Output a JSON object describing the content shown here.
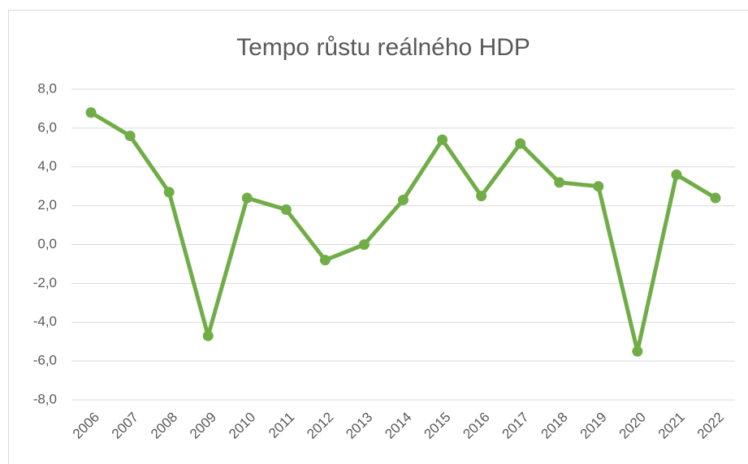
{
  "chart_data": {
    "type": "line",
    "title": "Tempo růstu reálného HDP",
    "categories": [
      "2006",
      "2007",
      "2008",
      "2009",
      "2010",
      "2011",
      "2012",
      "2013",
      "2014",
      "2015",
      "2016",
      "2017",
      "2018",
      "2019",
      "2020",
      "2021",
      "2022"
    ],
    "values": [
      6.8,
      5.6,
      2.7,
      -4.7,
      2.4,
      1.8,
      -0.8,
      0.0,
      2.3,
      5.4,
      2.5,
      5.2,
      3.2,
      3.0,
      -5.5,
      3.6,
      2.4
    ],
    "color": "#70ad47",
    "ylim": [
      -8,
      8
    ],
    "yticks": [
      {
        "value": -8,
        "label": "-8,0"
      },
      {
        "value": -6,
        "label": "-6,0"
      },
      {
        "value": -4,
        "label": "-4,0"
      },
      {
        "value": -2,
        "label": "-2,0"
      },
      {
        "value": 0,
        "label": "0,0"
      },
      {
        "value": 2,
        "label": "2,0"
      },
      {
        "value": 4,
        "label": "4,0"
      },
      {
        "value": 6,
        "label": "6,0"
      },
      {
        "value": 8,
        "label": "8,0"
      }
    ],
    "grid": true
  }
}
